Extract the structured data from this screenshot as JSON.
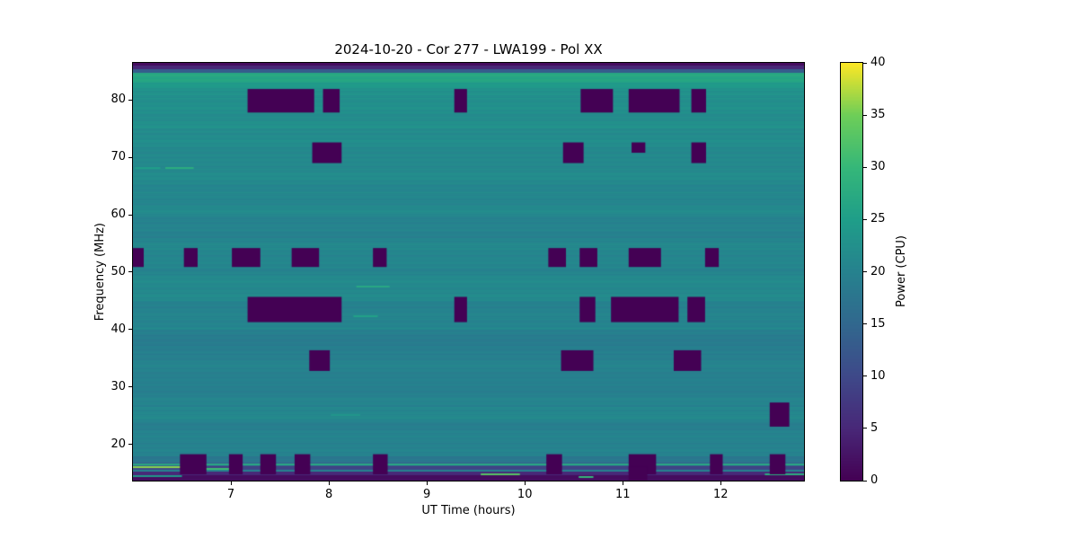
{
  "colors": {
    "figure_background": "#ffffff",
    "text": "#000000",
    "flagged": "#440154",
    "nominal_teal": "#26828e"
  },
  "chart_data": {
    "type": "heatmap",
    "title": "2024-10-20 - Cor 277 - LWA199 - Pol XX",
    "xlabel": "UT Time (hours)",
    "ylabel": "Frequency (MHz)",
    "colorbar_label": "Power (CPU)",
    "colormap": "viridis",
    "grid": false,
    "x_range": [
      6.0,
      12.85
    ],
    "y_range": [
      13.7,
      86.45
    ],
    "color_range": [
      0,
      40
    ],
    "x_ticks": [
      7,
      8,
      9,
      10,
      11,
      12
    ],
    "y_ticks": [
      20,
      30,
      40,
      50,
      60,
      70,
      80
    ],
    "colorbar_ticks": [
      0,
      5,
      10,
      15,
      20,
      25,
      30,
      35,
      40
    ],
    "colormap_stops": [
      [
        0.0,
        "#440154"
      ],
      [
        0.125,
        "#482878"
      ],
      [
        0.25,
        "#3e4989"
      ],
      [
        0.375,
        "#31688e"
      ],
      [
        0.5,
        "#26828e"
      ],
      [
        0.625,
        "#1f9e89"
      ],
      [
        0.75,
        "#35b779"
      ],
      [
        0.875,
        "#6ece58"
      ],
      [
        1.0,
        "#fde725"
      ]
    ],
    "background_bands": [
      {
        "f0": 86.0,
        "f1": 86.45,
        "power": 1.5
      },
      {
        "f0": 85.3,
        "f1": 86.0,
        "power": 5
      },
      {
        "f0": 84.7,
        "f1": 85.3,
        "power": 13
      },
      {
        "f0": 83.0,
        "f1": 84.7,
        "power": 27
      },
      {
        "f0": 82.0,
        "f1": 83.0,
        "power": 24.5
      },
      {
        "f0": 75.0,
        "f1": 82.0,
        "power": 22.3
      },
      {
        "f0": 70.0,
        "f1": 75.0,
        "power": 21.6
      },
      {
        "f0": 65.0,
        "f1": 70.0,
        "power": 21.2
      },
      {
        "f0": 60.0,
        "f1": 65.0,
        "power": 20.9
      },
      {
        "f0": 56.0,
        "f1": 60.0,
        "power": 20.2
      },
      {
        "f0": 50.0,
        "f1": 56.0,
        "power": 20.7
      },
      {
        "f0": 45.0,
        "f1": 50.0,
        "power": 21.1
      },
      {
        "f0": 40.0,
        "f1": 45.0,
        "power": 20.4
      },
      {
        "f0": 38.5,
        "f1": 40.0,
        "power": 19.0
      },
      {
        "f0": 36.0,
        "f1": 38.5,
        "power": 19.3
      },
      {
        "f0": 30.0,
        "f1": 36.0,
        "power": 19.8
      },
      {
        "f0": 26.5,
        "f1": 30.0,
        "power": 19.9
      },
      {
        "f0": 24.0,
        "f1": 26.5,
        "power": 20.9
      },
      {
        "f0": 18.0,
        "f1": 24.0,
        "power": 19.9
      },
      {
        "f0": 16.9,
        "f1": 18.0,
        "power": 18.3
      },
      {
        "f0": 16.2,
        "f1": 16.9,
        "power": 14
      },
      {
        "f0": 15.4,
        "f1": 16.2,
        "power": 9
      },
      {
        "f0": 14.6,
        "f1": 15.4,
        "power": 5
      },
      {
        "f0": 13.7,
        "f1": 14.6,
        "power": 1.5
      }
    ],
    "spectral_lines": [
      {
        "f": 68.2,
        "t0": 6.33,
        "t1": 6.62,
        "power": 28
      },
      {
        "f": 68.2,
        "t0": 6.02,
        "t1": 6.28,
        "power": 25
      },
      {
        "f": 47.5,
        "t0": 8.28,
        "t1": 8.62,
        "power": 27
      },
      {
        "f": 42.3,
        "t0": 8.25,
        "t1": 8.5,
        "power": 25.5
      },
      {
        "f": 25.1,
        "t0": 8.02,
        "t1": 8.32,
        "power": 23.5
      },
      {
        "f": 16.45,
        "t0": 6.0,
        "t1": 12.85,
        "power": 27
      },
      {
        "f": 16.1,
        "t0": 6.0,
        "t1": 6.62,
        "power": 36
      },
      {
        "f": 15.8,
        "t0": 6.55,
        "t1": 7.1,
        "power": 31
      },
      {
        "f": 15.35,
        "t0": 6.0,
        "t1": 12.85,
        "power": 20
      },
      {
        "f": 14.85,
        "t0": 9.55,
        "t1": 9.95,
        "power": 33
      },
      {
        "f": 14.85,
        "t0": 12.45,
        "t1": 12.85,
        "power": 28
      },
      {
        "f": 14.5,
        "t0": 6.0,
        "t1": 6.5,
        "power": 24
      },
      {
        "f": 14.4,
        "t0": 10.55,
        "t1": 10.7,
        "power": 30
      }
    ],
    "flagged_power": 0,
    "flagged_regions": [
      {
        "f0": 77.8,
        "f1": 81.9,
        "intervals": [
          [
            7.17,
            7.85
          ],
          [
            7.94,
            8.11
          ],
          [
            9.28,
            9.41
          ],
          [
            10.57,
            10.9
          ],
          [
            11.06,
            11.58
          ],
          [
            11.7,
            11.85
          ]
        ]
      },
      {
        "f0": 69.0,
        "f1": 72.6,
        "intervals": [
          [
            7.83,
            8.13
          ],
          [
            10.39,
            10.6
          ],
          [
            11.7,
            11.85
          ]
        ]
      },
      {
        "f0": 70.8,
        "f1": 72.6,
        "intervals": [
          [
            11.09,
            11.23
          ]
        ]
      },
      {
        "f0": 50.9,
        "f1": 54.2,
        "intervals": [
          [
            6.0,
            6.11
          ],
          [
            6.52,
            6.66
          ],
          [
            7.01,
            7.3
          ],
          [
            7.62,
            7.9
          ],
          [
            8.45,
            8.59
          ],
          [
            10.24,
            10.42
          ],
          [
            10.56,
            10.74
          ],
          [
            11.06,
            11.39
          ],
          [
            11.84,
            11.98
          ]
        ]
      },
      {
        "f0": 41.3,
        "f1": 45.7,
        "intervals": [
          [
            7.17,
            8.13
          ],
          [
            9.28,
            9.41
          ],
          [
            10.56,
            10.72
          ],
          [
            10.88,
            11.57
          ],
          [
            11.66,
            11.84
          ]
        ]
      },
      {
        "f0": 32.8,
        "f1": 36.4,
        "intervals": [
          [
            7.8,
            8.01
          ],
          [
            10.37,
            10.7
          ],
          [
            11.52,
            11.8
          ]
        ]
      },
      {
        "f0": 23.1,
        "f1": 27.3,
        "intervals": [
          [
            12.5,
            12.7
          ]
        ]
      },
      {
        "f0": 14.8,
        "f1": 18.3,
        "intervals": [
          [
            6.48,
            6.75
          ],
          [
            6.98,
            7.12
          ],
          [
            7.3,
            7.46
          ],
          [
            7.65,
            7.81
          ],
          [
            8.45,
            8.6
          ],
          [
            10.22,
            10.38
          ],
          [
            11.06,
            11.34
          ],
          [
            11.89,
            12.02
          ],
          [
            12.5,
            12.66
          ]
        ]
      },
      {
        "f0": 13.7,
        "f1": 16.2,
        "intervals": [
          [
            11.06,
            11.25
          ]
        ]
      }
    ]
  }
}
